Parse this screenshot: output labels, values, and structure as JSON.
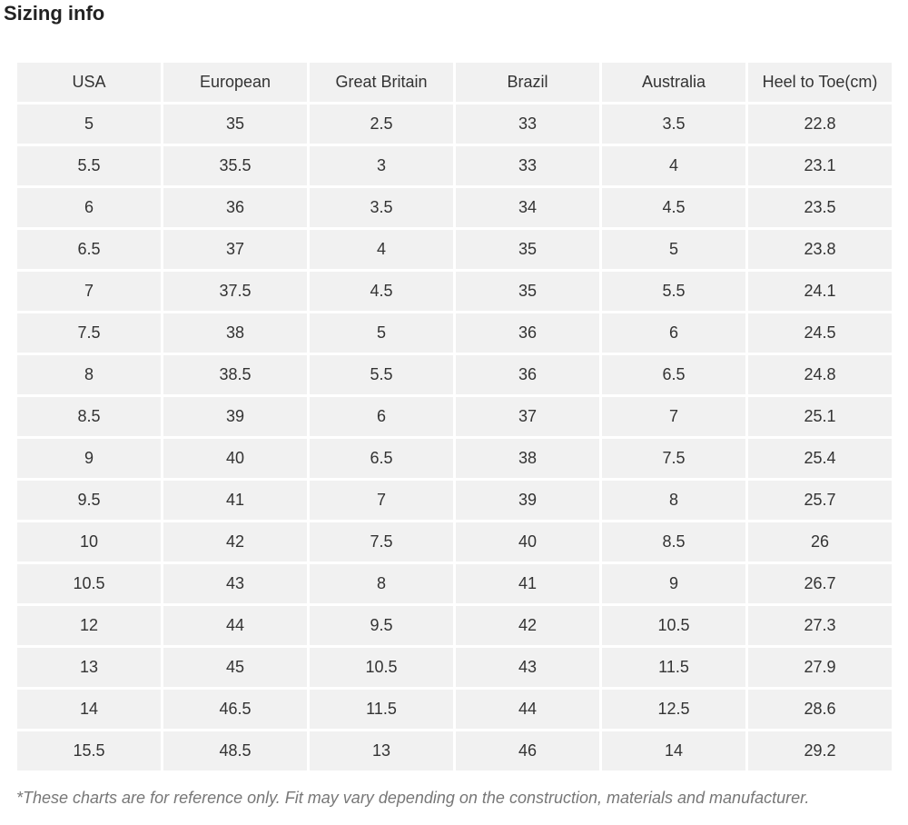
{
  "title": "Sizing info",
  "table": {
    "headers": [
      "USA",
      "European",
      "Great Britain",
      "Brazil",
      "Australia",
      "Heel to Toe(cm)"
    ],
    "rows": [
      [
        5,
        35,
        2.5,
        33,
        3.5,
        22.8
      ],
      [
        5.5,
        35.5,
        3,
        33,
        4,
        23.1
      ],
      [
        6,
        36,
        3.5,
        34,
        4.5,
        23.5
      ],
      [
        6.5,
        37,
        4,
        35,
        5,
        23.8
      ],
      [
        7,
        37.5,
        4.5,
        35,
        5.5,
        24.1
      ],
      [
        7.5,
        38,
        5,
        36,
        6,
        24.5
      ],
      [
        8,
        38.5,
        5.5,
        36,
        6.5,
        24.8
      ],
      [
        8.5,
        39,
        6,
        37,
        7,
        25.1
      ],
      [
        9,
        40,
        6.5,
        38,
        7.5,
        25.4
      ],
      [
        9.5,
        41,
        7,
        39,
        8,
        25.7
      ],
      [
        10,
        42,
        7.5,
        40,
        8.5,
        26
      ],
      [
        10.5,
        43,
        8,
        41,
        9,
        26.7
      ],
      [
        12,
        44,
        9.5,
        42,
        10.5,
        27.3
      ],
      [
        13,
        45,
        10.5,
        43,
        11.5,
        27.9
      ],
      [
        14,
        46.5,
        11.5,
        44,
        12.5,
        28.6
      ],
      [
        15.5,
        48.5,
        13,
        46,
        14,
        29.2
      ]
    ]
  },
  "note": "*These charts are for reference only. Fit may vary depending on the construction, materials and manufacturer."
}
